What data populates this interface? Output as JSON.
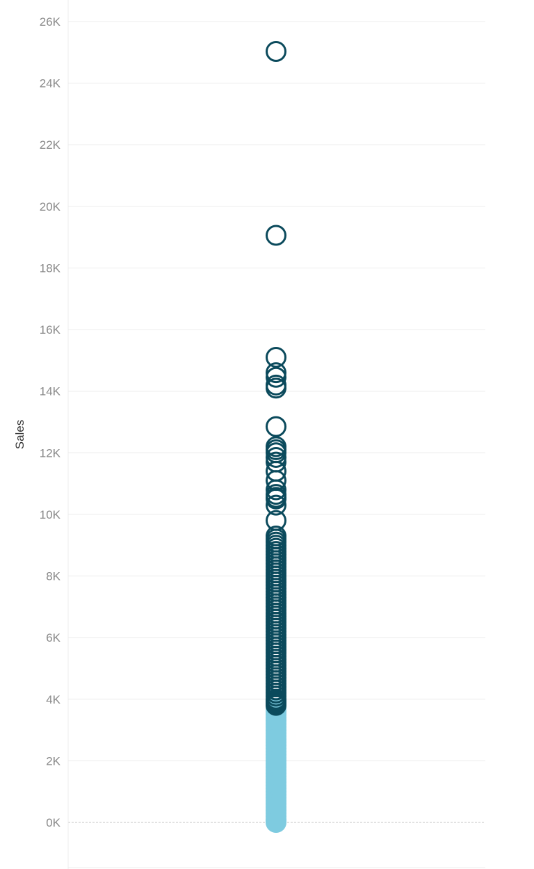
{
  "chart_data": {
    "type": "scatter",
    "title": "",
    "xlabel": "",
    "ylabel": "Sales",
    "ylim": [
      -1500,
      26500
    ],
    "grid": true,
    "y_ticks": [
      0,
      2000,
      4000,
      6000,
      8000,
      10000,
      12000,
      14000,
      16000,
      18000,
      20000,
      22000,
      24000,
      26000
    ],
    "y_tick_labels": [
      "0K",
      "2K",
      "4K",
      "6K",
      "8K",
      "10K",
      "12K",
      "14K",
      "16K",
      "18K",
      "20K",
      "22K",
      "24K",
      "26K"
    ],
    "colors": {
      "high": "#0b4a5c",
      "low": "#7ecbe0",
      "grid": "#ececec",
      "zero_line": "#c4c4c4",
      "tick": "#8a8a8a"
    },
    "series": [
      {
        "marker": "hollow-circle",
        "color": "#0b4a5c",
        "values": [
          25030,
          19060,
          15100,
          14600,
          14450,
          14200,
          14100,
          12850,
          12200,
          12100,
          12000,
          11850,
          11700,
          11400,
          11100,
          10800,
          10650,
          10550,
          10500,
          10300,
          9800,
          9300,
          9200,
          9100,
          9000,
          8900,
          8800,
          8700,
          8600,
          8500,
          8400,
          8300,
          8200,
          8100,
          8000,
          7900,
          7800,
          7700,
          7600,
          7500,
          7400,
          7300,
          7200,
          7100,
          7000,
          6900,
          6800,
          6700,
          6600,
          6500,
          6400,
          6300,
          6200,
          6100,
          6000,
          5900,
          5800,
          5700,
          5600,
          5500,
          5400,
          5300,
          5200,
          5100,
          5000,
          4900,
          4800,
          4700,
          4600,
          4500,
          4400,
          4300,
          4200,
          4100,
          4000,
          3950,
          3900,
          3850,
          3800
        ]
      },
      {
        "marker": "filled-circle",
        "color": "#7ecbe0",
        "values": [
          3700,
          3600,
          3500,
          3400,
          3300,
          3200,
          3100,
          3000,
          2900,
          2800,
          2700,
          2600,
          2500,
          2400,
          2300,
          2200,
          2100,
          2000,
          1900,
          1800,
          1700,
          1600,
          1500,
          1400,
          1300,
          1200,
          1100,
          1000,
          900,
          800,
          700,
          600,
          500,
          400,
          300,
          200,
          100,
          50,
          0
        ]
      }
    ]
  }
}
